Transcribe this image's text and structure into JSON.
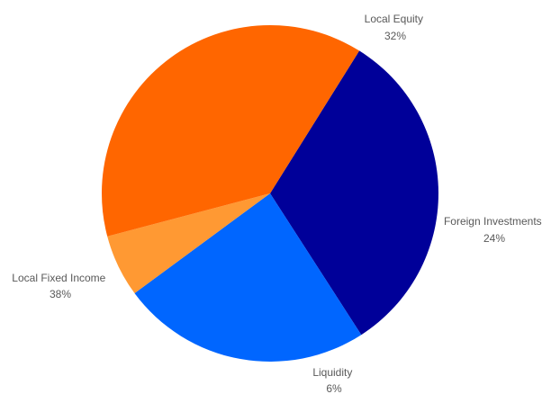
{
  "chart_data": {
    "type": "pie",
    "title": "",
    "slices": [
      {
        "label": "Local Equity",
        "value": 32,
        "value_label": "32%",
        "color": "#000099"
      },
      {
        "label": "Foreign Investments",
        "value": 24,
        "value_label": "24%",
        "color": "#0066FF"
      },
      {
        "label": "Liquidity",
        "value": 6,
        "value_label": "6%",
        "color": "#FF9933"
      },
      {
        "label": "Local Fixed Income",
        "value": 38,
        "value_label": "38%",
        "color": "#FF6600"
      }
    ],
    "legend": "none",
    "labels": "outside"
  }
}
